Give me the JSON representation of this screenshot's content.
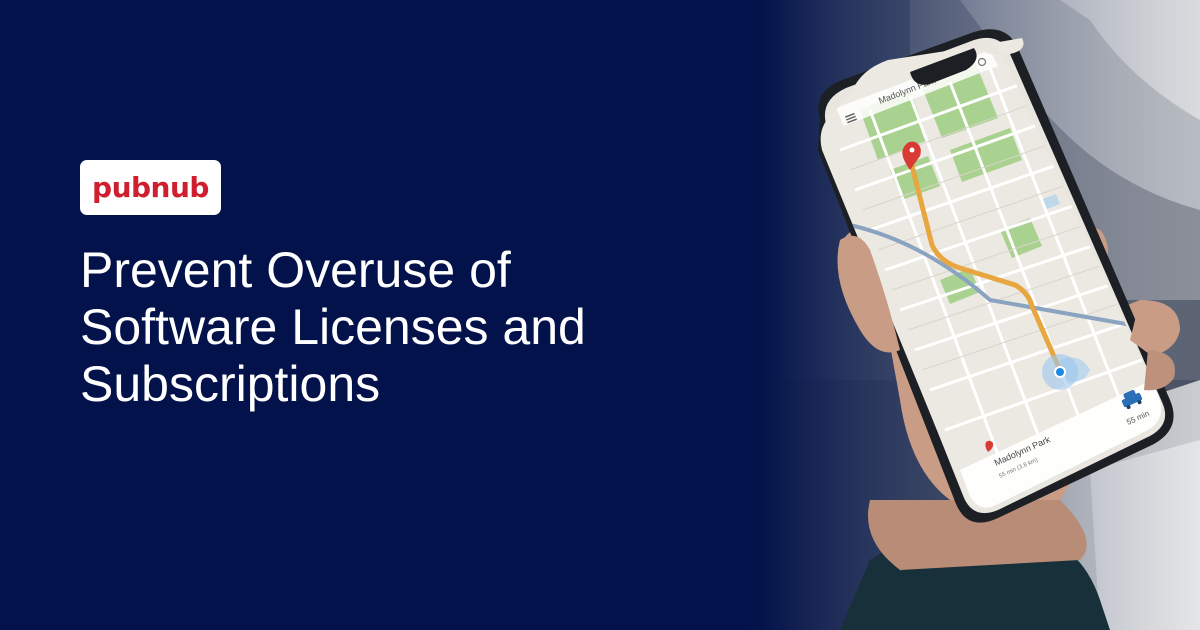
{
  "logo": {
    "text": "pubnub"
  },
  "headline": {
    "lines": [
      "Prevent Overuse of",
      "Software Licenses and",
      "Subscriptions"
    ]
  },
  "phone_screen": {
    "top_label": "Madolynn Park",
    "eta": "55 min",
    "destination": "Madolynn Park",
    "destination_sub": "55 min (3.8 km)"
  },
  "colors": {
    "background": "#03124a",
    "logo_red": "#cf1f2e",
    "route": "#e8a640",
    "park": "#9ccc8a"
  },
  "icons": [
    "map-pin-icon",
    "car-icon",
    "location-dot-icon",
    "menu-icon",
    "search-icon"
  ]
}
